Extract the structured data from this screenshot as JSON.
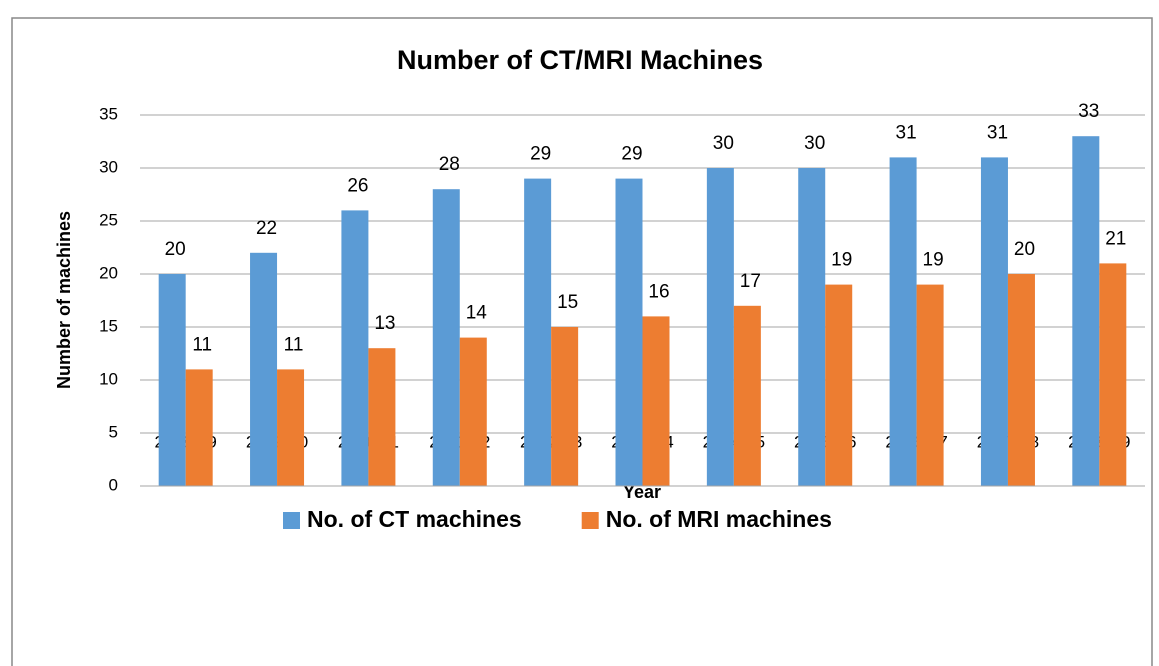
{
  "chart_data": {
    "type": "bar",
    "title": "Number of CT/MRI Machines",
    "x_label": "Year",
    "y_label": "Number of machines",
    "categories": [
      "2008-09",
      "2009-10",
      "2010-11",
      "2011-12",
      "2012-13",
      "2013-14",
      "2014-15",
      "2015-16",
      "2016-17",
      "2017-18",
      "2018-19"
    ],
    "series": [
      {
        "name": "No. of CT machines",
        "color": "#5b9bd5",
        "values": [
          20,
          22,
          26,
          28,
          29,
          29,
          30,
          30,
          31,
          31,
          33
        ]
      },
      {
        "name": "No. of MRI machines",
        "color": "#ed7d31",
        "values": [
          11,
          11,
          13,
          14,
          15,
          16,
          17,
          19,
          19,
          20,
          21
        ]
      }
    ],
    "ylim": [
      0,
      35
    ],
    "yticks": [
      0,
      5,
      10,
      15,
      20,
      25,
      30,
      35
    ],
    "grid": true,
    "legend": "bottom"
  }
}
